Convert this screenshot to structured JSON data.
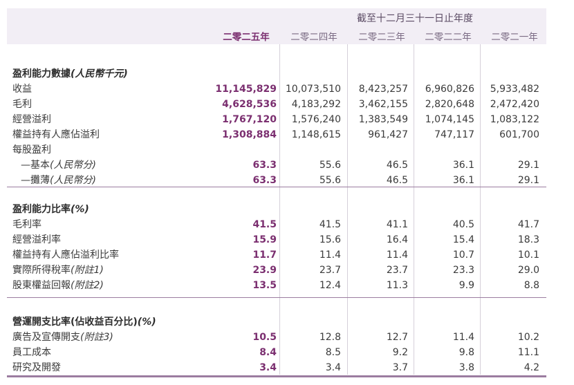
{
  "header": {
    "group_title": "截至十二月三十一日止年度",
    "columns": [
      "二零二五年",
      "二零二四年",
      "二零二三年",
      "二零二二年",
      "二零二一年"
    ]
  },
  "sections": [
    {
      "title": "盈利能力數據",
      "title_note": "(人民幣千元)",
      "rows": [
        {
          "label": "收益",
          "note": "",
          "values": [
            "11,145,829",
            "10,073,510",
            "8,423,257",
            "6,960,826",
            "5,933,482"
          ]
        },
        {
          "label": "毛利",
          "note": "",
          "values": [
            "4,628,536",
            "4,183,292",
            "3,462,155",
            "2,820,648",
            "2,472,420"
          ]
        },
        {
          "label": "經營溢利",
          "note": "",
          "values": [
            "1,767,120",
            "1,576,240",
            "1,383,549",
            "1,074,145",
            "1,083,122"
          ]
        },
        {
          "label": "權益持有人應佔溢利",
          "note": "",
          "values": [
            "1,308,884",
            "1,148,615",
            "961,427",
            "747,117",
            "601,700"
          ]
        },
        {
          "label": "每股盈利",
          "note": "",
          "values": [
            "",
            "",
            "",
            "",
            ""
          ]
        },
        {
          "label": "—基本",
          "note": "(人民幣分)",
          "values": [
            "63.3",
            "55.6",
            "46.5",
            "36.1",
            "29.1"
          ]
        },
        {
          "label": "—攤薄",
          "note": "(人民幣分)",
          "values": [
            "63.3",
            "55.6",
            "46.5",
            "36.1",
            "29.1"
          ]
        }
      ]
    },
    {
      "title": "盈利能力比率",
      "title_note": "(%)",
      "rows": [
        {
          "label": "毛利率",
          "note": "",
          "values": [
            "41.5",
            "41.5",
            "41.1",
            "40.5",
            "41.7"
          ]
        },
        {
          "label": "經營溢利率",
          "note": "",
          "values": [
            "15.9",
            "15.6",
            "16.4",
            "15.4",
            "18.3"
          ]
        },
        {
          "label": "權益持有人應佔溢利比率",
          "note": "",
          "values": [
            "11.7",
            "11.4",
            "11.4",
            "10.7",
            "10.1"
          ]
        },
        {
          "label": "實際所得稅率",
          "note": "(附註1)",
          "values": [
            "23.9",
            "23.7",
            "23.7",
            "23.3",
            "29.0"
          ]
        },
        {
          "label": "股東權益回報",
          "note": "(附註2)",
          "values": [
            "13.5",
            "12.4",
            "11.3",
            "9.9",
            "8.8"
          ]
        }
      ]
    },
    {
      "title": "營運開支比率(佔收益百分比)",
      "title_note": "(%)",
      "rows": [
        {
          "label": "廣告及宣傳開支",
          "note": "(附註3)",
          "values": [
            "10.5",
            "12.8",
            "12.7",
            "11.4",
            "10.2"
          ]
        },
        {
          "label": "員工成本",
          "note": "",
          "values": [
            "8.4",
            "8.5",
            "9.2",
            "9.8",
            "11.1"
          ]
        },
        {
          "label": "研究及開發",
          "note": "",
          "values": [
            "3.4",
            "3.4",
            "3.7",
            "3.8",
            "4.2"
          ]
        }
      ]
    }
  ]
}
